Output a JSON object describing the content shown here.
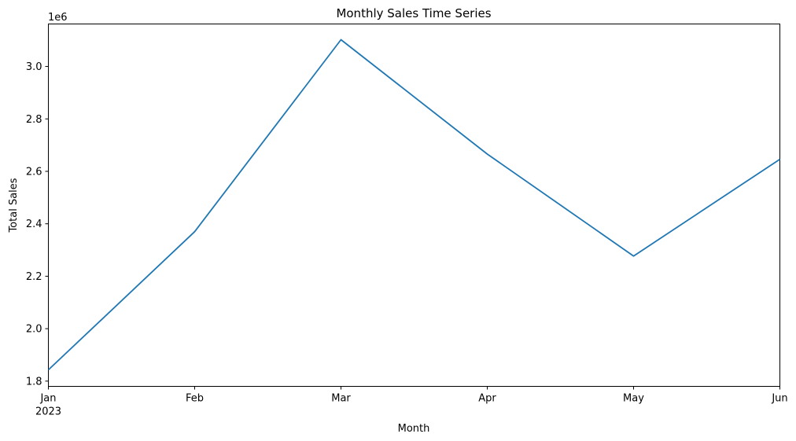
{
  "chart_data": {
    "type": "line",
    "title": "Monthly Sales Time Series",
    "xlabel": "Month",
    "ylabel": "Total Sales",
    "y_offset_label": "1e6",
    "x_tick_labels": [
      "Jan",
      "Feb",
      "Mar",
      "Apr",
      "May",
      "Jun"
    ],
    "x_tick_sublabels": [
      "2023",
      "",
      "",
      "",
      "",
      ""
    ],
    "y_tick_labels": [
      "1.8",
      "2.0",
      "2.2",
      "2.4",
      "2.6",
      "2.8",
      "3.0"
    ],
    "y_ticks": [
      1.8,
      2.0,
      2.2,
      2.4,
      2.6,
      2.8,
      3.0
    ],
    "ylim": [
      1.78,
      3.162
    ],
    "y_scale": "1e6",
    "grid": false,
    "legend": "none",
    "series": [
      {
        "x": [
          "2023-01",
          "2023-02",
          "2023-03",
          "2023-04",
          "2023-05",
          "2023-06"
        ],
        "values": [
          1.843,
          2.37,
          3.102,
          2.666,
          2.277,
          2.646
        ],
        "color": "#1f77b4"
      }
    ]
  }
}
